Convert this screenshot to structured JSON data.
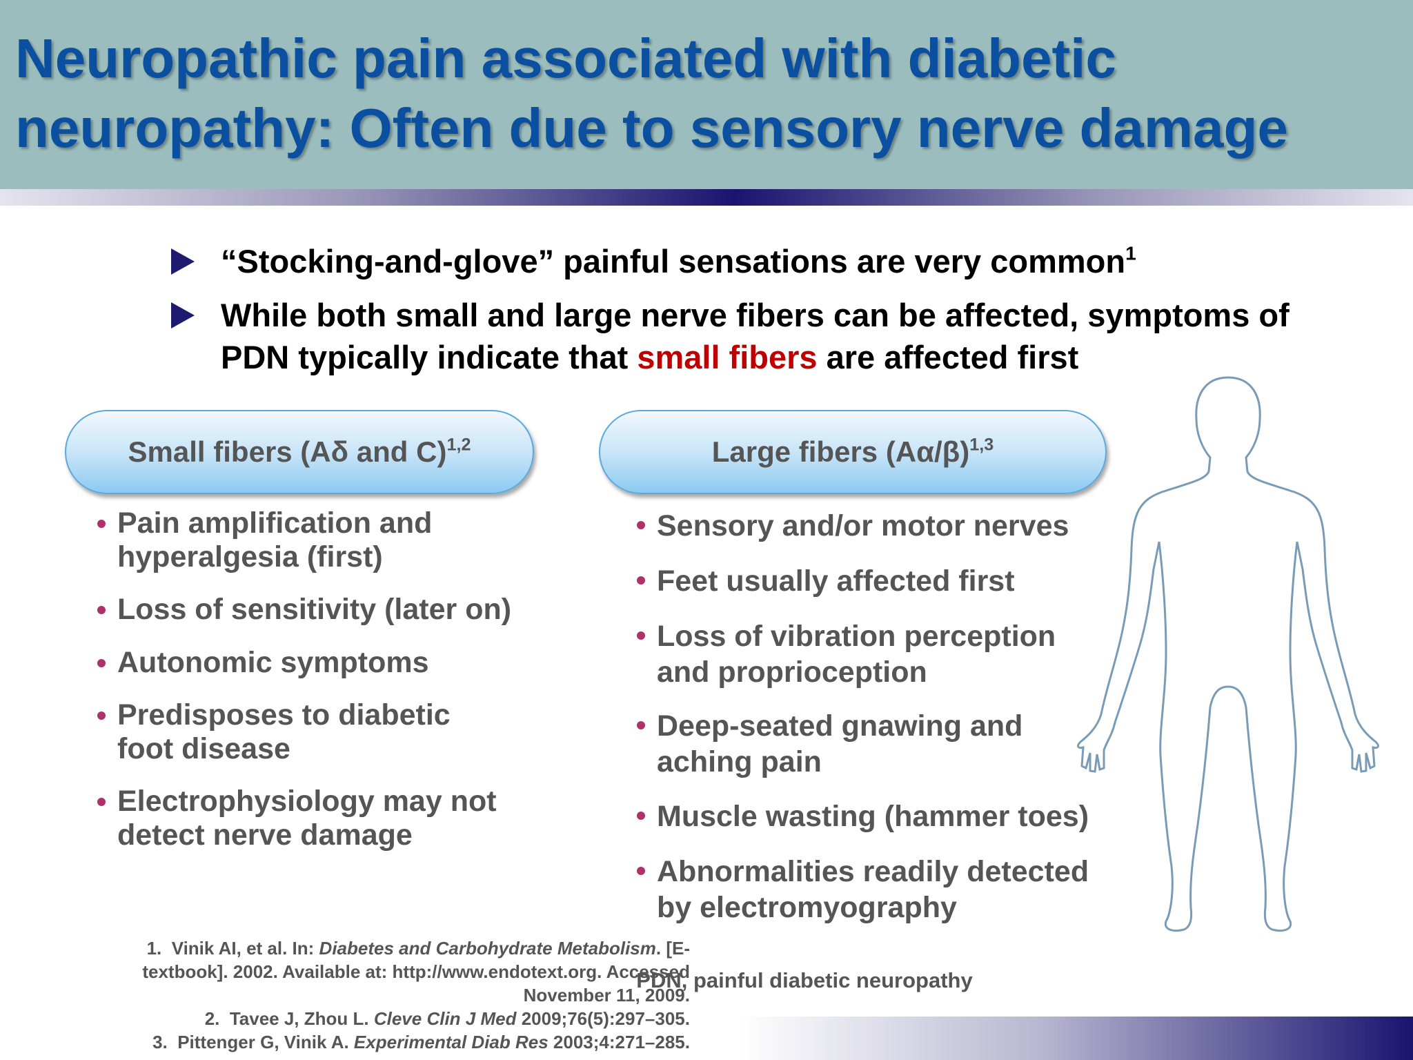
{
  "header": {
    "title": [
      [
        {
          "text": "Neuropathic pain associated with diabetic"
        }
      ],
      [
        {
          "text": "neuropathy: Often due to sensory nerve damage"
        }
      ]
    ]
  },
  "bullets": [
    [
      [
        {
          "text": "“Stocking-and-glove” painful sensations are very common"
        },
        {
          "text": "1",
          "sup": true
        }
      ]
    ],
    [
      [
        {
          "text": "While both small and large nerve fibers can be affected, symptoms of"
        }
      ],
      [
        {
          "text": "PDN typically indicate that "
        },
        {
          "text": "small fibers",
          "color": "#c00000"
        },
        {
          "text": " are affected first"
        }
      ]
    ]
  ],
  "columns": [
    {
      "heading": [
        [
          {
            "text": "Small fibers (Aδ and C)"
          },
          {
            "text": "1,2",
            "sup": true
          }
        ]
      ],
      "items": [
        [
          [
            {
              "text": "Pain amplification and"
            }
          ],
          [
            {
              "text": "hyperalgesia (first)"
            }
          ]
        ],
        [
          [
            {
              "text": "Loss of sensitivity (later on)"
            }
          ]
        ],
        [
          [
            {
              "text": "Autonomic symptoms"
            }
          ]
        ],
        [
          [
            {
              "text": "Predisposes to diabetic"
            }
          ],
          [
            {
              "text": "foot disease"
            }
          ]
        ],
        [
          [
            {
              "text": "Electrophysiology may not"
            }
          ],
          [
            {
              "text": "detect nerve damage"
            }
          ]
        ]
      ]
    },
    {
      "heading": [
        [
          {
            "text": "Large fibers (Aα/β)"
          },
          {
            "text": "1,3",
            "sup": true
          }
        ]
      ],
      "items": [
        [
          [
            {
              "text": "Sensory and/or motor nerves"
            }
          ]
        ],
        [
          [
            {
              "text": "Feet usually affected first"
            }
          ]
        ],
        [
          [
            {
              "text": "Loss of vibration perception"
            }
          ],
          [
            {
              "text": "and proprioception"
            }
          ]
        ],
        [
          [
            {
              "text": "Deep-seated gnawing and"
            }
          ],
          [
            {
              "text": "aching pain"
            }
          ]
        ],
        [
          [
            {
              "text": "Muscle wasting (hammer toes)"
            }
          ]
        ],
        [
          [
            {
              "text": "Abnormalities readily detected"
            }
          ],
          [
            {
              "text": "by electromyography"
            }
          ]
        ]
      ]
    }
  ],
  "references": [
    [
      {
        "text": "1.  Vinik AI, et al. In: "
      },
      {
        "text": "Diabetes and Carbohydrate Metabolism",
        "italic": true
      },
      {
        "text": ". [E-"
      }
    ],
    [
      {
        "text": "textbook]. 2002. Available at: http://www.endotext.org. Accessed"
      }
    ],
    [
      {
        "text": "November 11, 2009."
      }
    ],
    [
      {
        "text": "2.  Tavee J, Zhou L. "
      },
      {
        "text": "Cleve Clin J Med",
        "italic": true
      },
      {
        "text": " 2009;76(5):297–305."
      }
    ],
    [
      {
        "text": "3.  Pittenger G, Vinik A. "
      },
      {
        "text": "Experimental Diab Res",
        "italic": true
      },
      {
        "text": " 2003;4:271–285."
      }
    ]
  ],
  "caption": [
    [
      {
        "text": "PDN, painful diabetic neuropathy"
      }
    ]
  ]
}
